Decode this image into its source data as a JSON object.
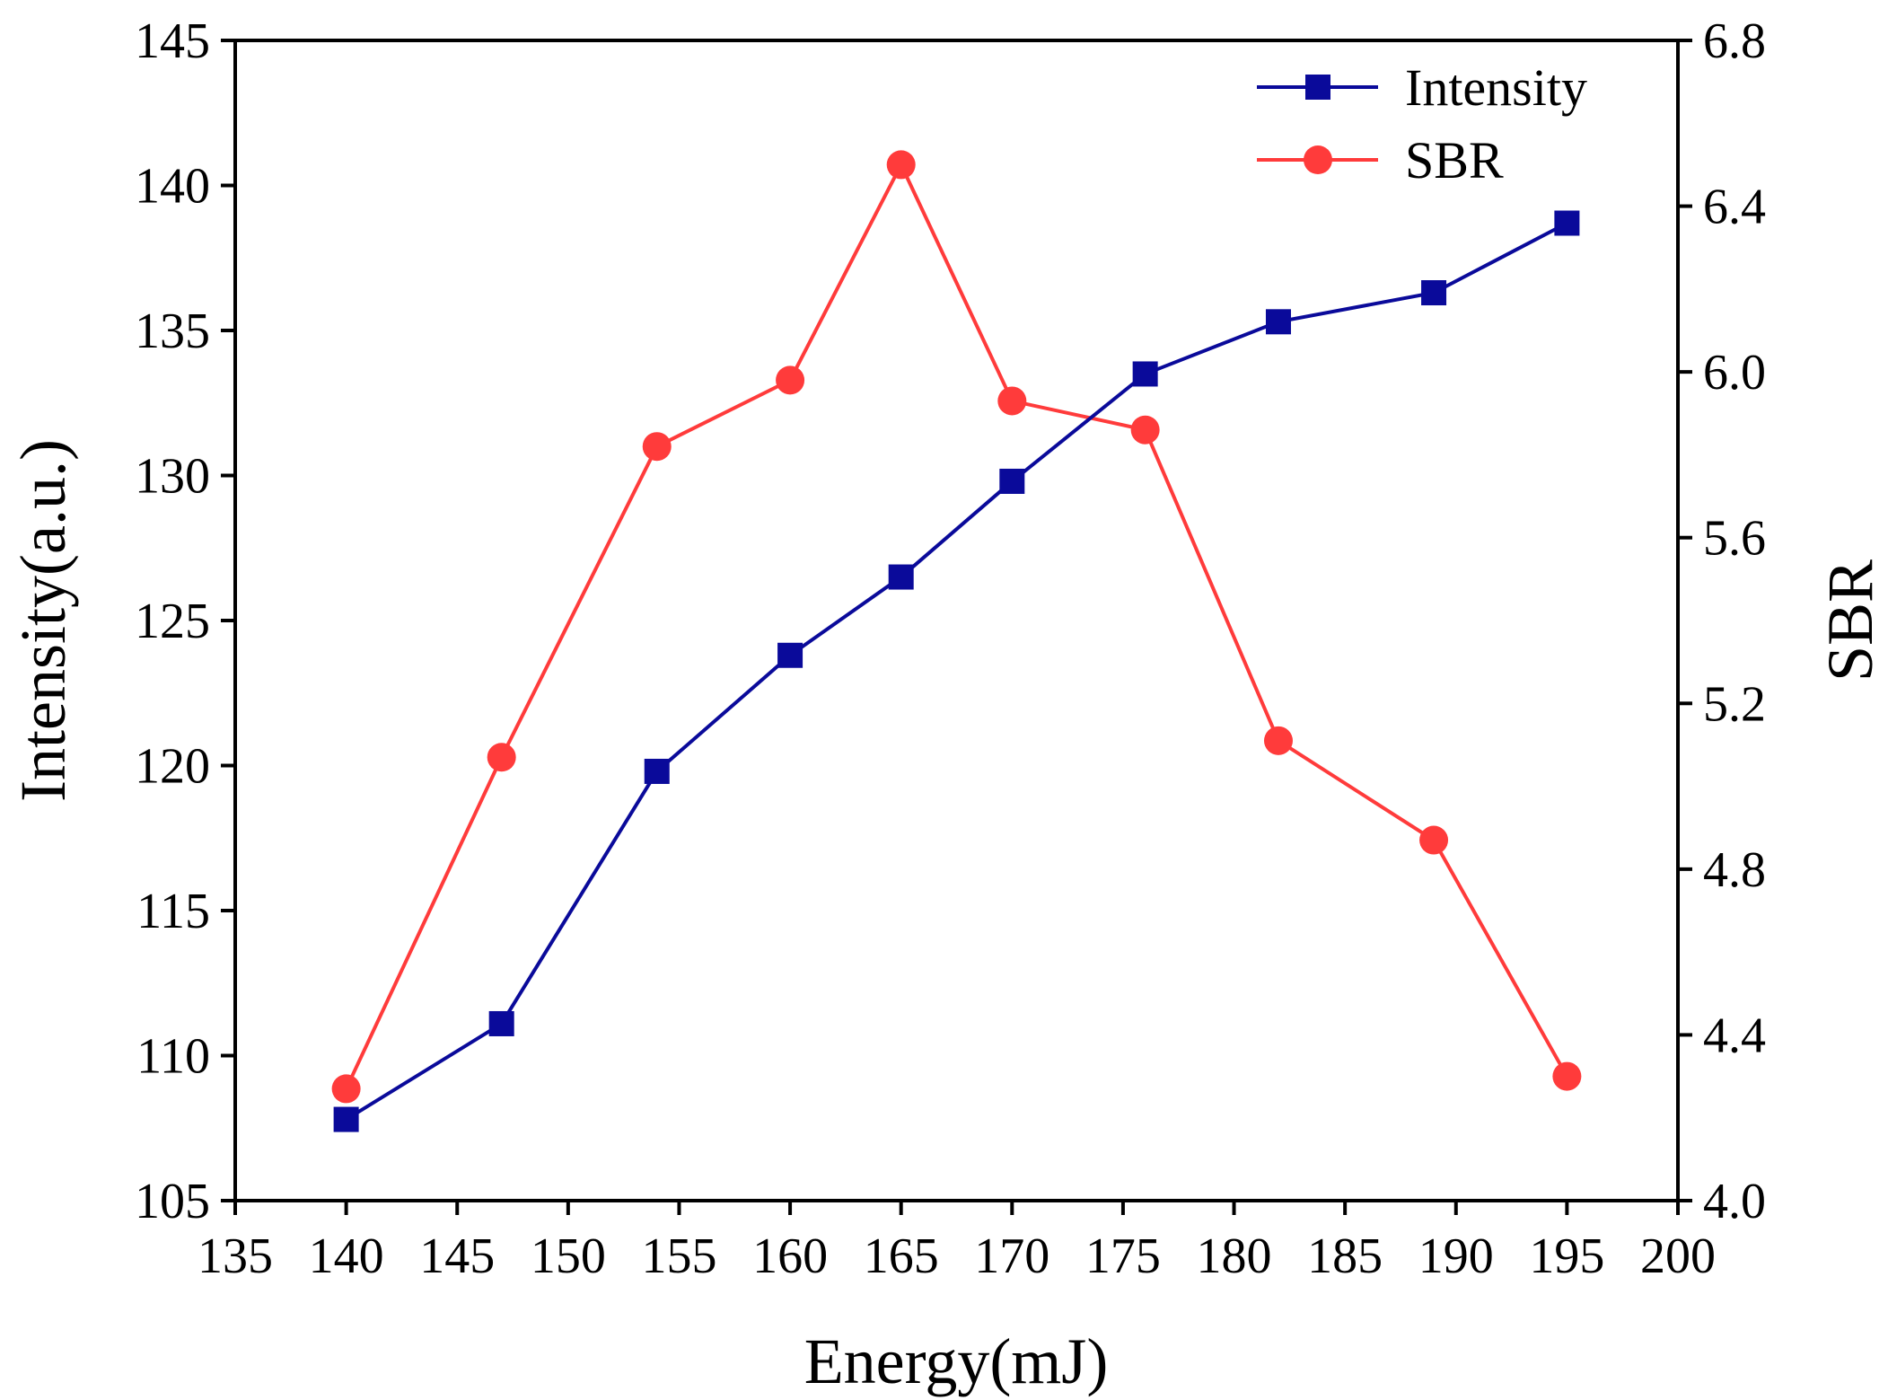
{
  "chart_data": {
    "type": "line",
    "title": "",
    "xlabel": "Energy(mJ)",
    "ylabel": "Intensity(a.u.)",
    "y2label": "SBR",
    "xlim": [
      135,
      200
    ],
    "ylim": [
      105,
      145
    ],
    "y2lim": [
      4.0,
      6.8
    ],
    "xticks": [
      "135",
      "140",
      "145",
      "150",
      "155",
      "160",
      "165",
      "170",
      "175",
      "180",
      "185",
      "190",
      "195",
      "200"
    ],
    "yticks": [
      "105",
      "110",
      "115",
      "120",
      "125",
      "130",
      "135",
      "140",
      "145"
    ],
    "y2ticks": [
      "4.0",
      "4.4",
      "4.8",
      "5.2",
      "5.6",
      "6.0",
      "6.4",
      "6.8"
    ],
    "legend_position": "top-right",
    "grid": false,
    "series": [
      {
        "name": "Intensity",
        "axis": "left",
        "color": "#0a0a9a",
        "marker": "square",
        "x": [
          140,
          147,
          154,
          160,
          165,
          170,
          176,
          182,
          189,
          195
        ],
        "values": [
          107.8,
          111.1,
          119.8,
          123.8,
          126.5,
          129.8,
          133.5,
          135.3,
          136.3,
          138.7
        ]
      },
      {
        "name": "SBR",
        "axis": "right",
        "color": "#ff3b3b",
        "marker": "circle",
        "x": [
          140,
          147,
          154,
          160,
          165,
          170,
          176,
          182,
          189,
          195
        ],
        "values": [
          4.27,
          5.07,
          5.82,
          5.98,
          6.5,
          5.93,
          5.86,
          5.11,
          4.87,
          4.3
        ]
      }
    ]
  }
}
